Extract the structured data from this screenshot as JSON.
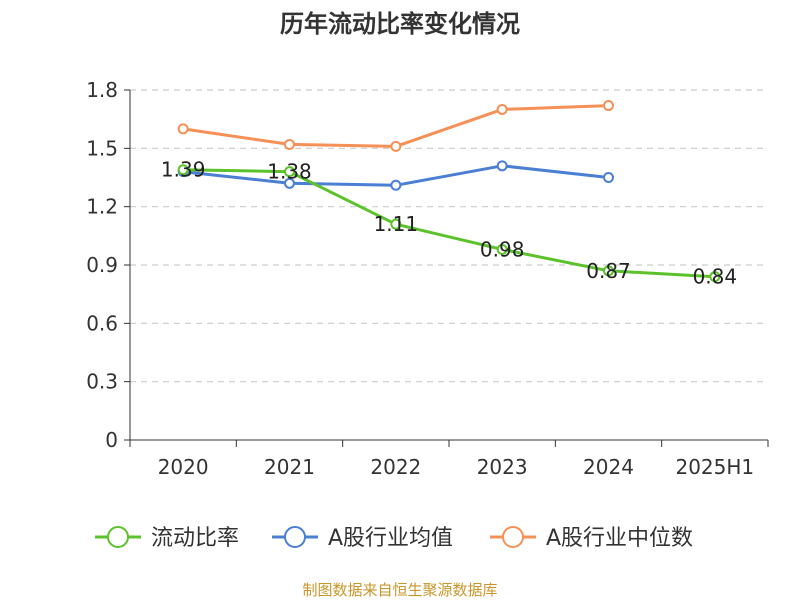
{
  "chart_data": {
    "type": "line",
    "title": "历年流动比率变化情况",
    "categories": [
      "2020",
      "2021",
      "2022",
      "2023",
      "2024",
      "2025H1"
    ],
    "ylim": [
      0,
      1.8
    ],
    "yticks": [
      0,
      0.3,
      0.6,
      0.9,
      1.2,
      1.5,
      1.8
    ],
    "ytick_labels": [
      "0",
      "0.3",
      "0.6",
      "0.9",
      "1.2",
      "1.5",
      "1.8"
    ],
    "grid": true,
    "legend_position": "bottom",
    "series": [
      {
        "name": "流动比率",
        "color": "#5cc22c",
        "values": [
          1.39,
          1.38,
          1.11,
          0.98,
          0.87,
          0.84
        ],
        "labels": [
          "1.39",
          "1.38",
          "1.11",
          "0.98",
          "0.87",
          "0.84"
        ],
        "show_labels": true
      },
      {
        "name": "A股行业均值",
        "color": "#4a7fd4",
        "values": [
          1.38,
          1.32,
          1.31,
          1.41,
          1.35,
          null
        ],
        "show_labels": false
      },
      {
        "name": "A股行业中位数",
        "color": "#f59057",
        "values": [
          1.6,
          1.52,
          1.51,
          1.7,
          1.72,
          null
        ],
        "show_labels": false
      }
    ],
    "source": "制图数据来自恒生聚源数据库"
  }
}
